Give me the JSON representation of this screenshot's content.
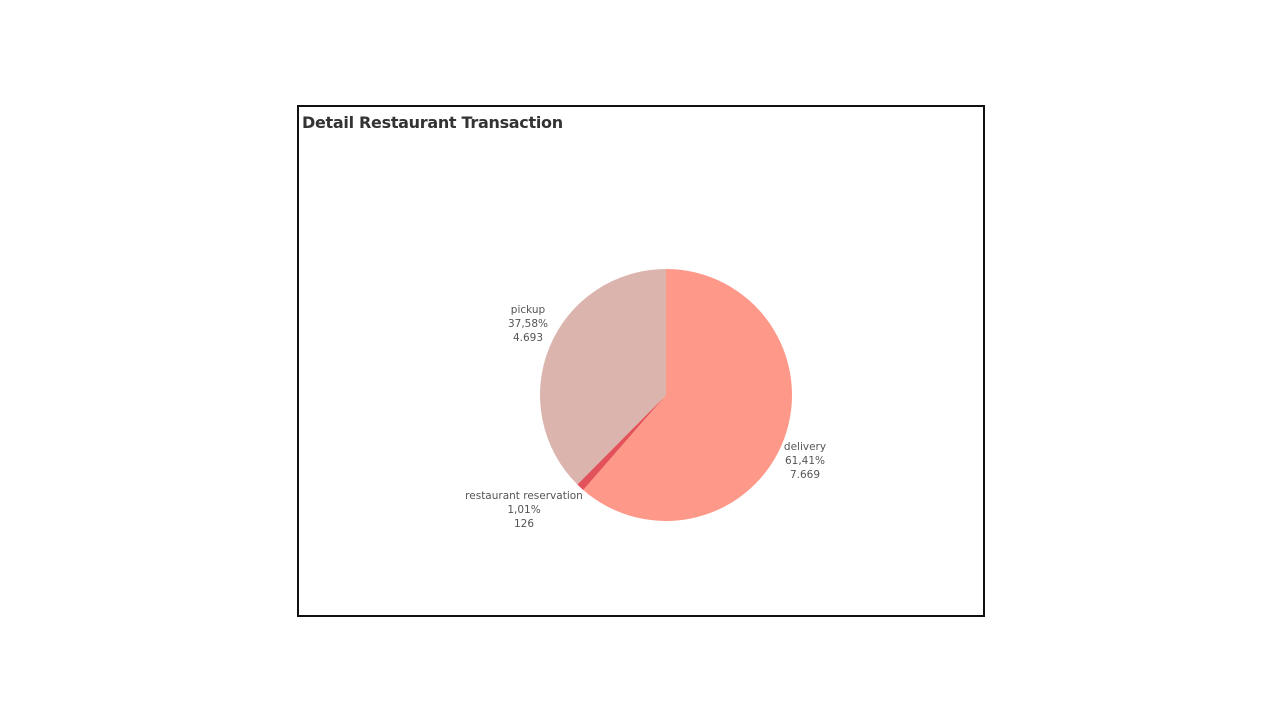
{
  "chart_data": {
    "type": "pie",
    "title": "Detail Restaurant Transaction",
    "slices": [
      {
        "name": "delivery",
        "percent_label": "61,41%",
        "value_label": "7.669",
        "value": 7669,
        "color": "#fe9888"
      },
      {
        "name": "restaurant reservation",
        "percent_label": "1,01%",
        "value_label": "126",
        "value": 126,
        "color": "#e3525a"
      },
      {
        "name": "pickup",
        "percent_label": "37,58%",
        "value_label": "4.693",
        "value": 4693,
        "color": "#dbb5ad"
      }
    ],
    "start_angle_deg": 0,
    "direction": "clockwise"
  }
}
